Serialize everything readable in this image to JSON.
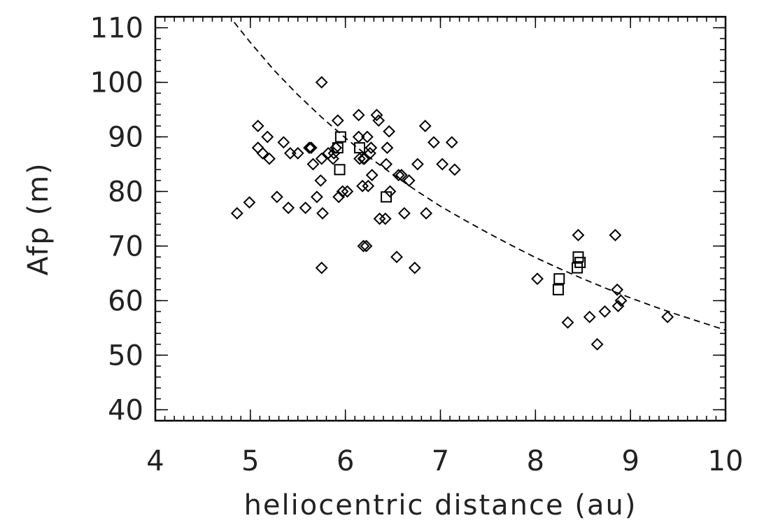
{
  "chart_data": {
    "type": "scatter",
    "title": "",
    "xlabel": "heliocentric distance (au)",
    "ylabel": "Afp (m)",
    "xlim": [
      4,
      10
    ],
    "ylim": [
      38,
      112
    ],
    "x_major_ticks": [
      4,
      5,
      6,
      7,
      8,
      9,
      10
    ],
    "x_tick_labels": [
      "4",
      "5",
      "6",
      "7",
      "8",
      "9",
      "10"
    ],
    "x_minor_step": 0.1,
    "y_major_ticks": [
      40,
      50,
      60,
      70,
      80,
      90,
      100,
      110
    ],
    "y_tick_labels": [
      "40",
      "50",
      "60",
      "70",
      "80",
      "90",
      "100",
      "110"
    ],
    "y_minor_step": 2,
    "grid": false,
    "legend": "none",
    "series": [
      {
        "marker": "diamond",
        "points": [
          [
            4.86,
            76
          ],
          [
            4.99,
            78
          ],
          [
            5.08,
            92
          ],
          [
            5.08,
            88
          ],
          [
            5.13,
            87
          ],
          [
            5.18,
            90
          ],
          [
            5.2,
            86
          ],
          [
            5.28,
            79
          ],
          [
            5.35,
            89
          ],
          [
            5.4,
            77
          ],
          [
            5.42,
            87
          ],
          [
            5.5,
            87
          ],
          [
            5.58,
            77
          ],
          [
            5.62,
            88
          ],
          [
            5.64,
            88
          ],
          [
            5.66,
            85
          ],
          [
            5.7,
            79
          ],
          [
            5.74,
            82
          ],
          [
            5.75,
            66
          ],
          [
            5.75,
            100
          ],
          [
            5.75,
            86
          ],
          [
            5.76,
            76
          ],
          [
            5.82,
            87
          ],
          [
            5.87,
            86
          ],
          [
            5.88,
            87
          ],
          [
            5.9,
            88
          ],
          [
            5.92,
            93
          ],
          [
            5.93,
            79
          ],
          [
            5.97,
            80
          ],
          [
            6.02,
            80
          ],
          [
            6.14,
            94
          ],
          [
            6.14,
            90
          ],
          [
            6.15,
            86
          ],
          [
            6.18,
            81
          ],
          [
            6.19,
            70
          ],
          [
            6.19,
            86
          ],
          [
            6.2,
            86
          ],
          [
            6.22,
            70
          ],
          [
            6.23,
            90
          ],
          [
            6.24,
            81
          ],
          [
            6.26,
            87
          ],
          [
            6.27,
            88
          ],
          [
            6.28,
            83
          ],
          [
            6.33,
            94
          ],
          [
            6.35,
            93
          ],
          [
            6.36,
            75
          ],
          [
            6.42,
            75
          ],
          [
            6.43,
            85
          ],
          [
            6.44,
            88
          ],
          [
            6.46,
            91
          ],
          [
            6.47,
            80
          ],
          [
            6.54,
            68
          ],
          [
            6.56,
            83
          ],
          [
            6.59,
            83
          ],
          [
            6.62,
            76
          ],
          [
            6.67,
            82
          ],
          [
            6.73,
            66
          ],
          [
            6.76,
            85
          ],
          [
            6.84,
            92
          ],
          [
            6.85,
            76
          ],
          [
            6.93,
            89
          ],
          [
            7.02,
            85
          ],
          [
            7.12,
            89
          ],
          [
            7.15,
            84
          ],
          [
            8.02,
            64
          ],
          [
            8.34,
            56
          ],
          [
            8.45,
            72
          ],
          [
            8.57,
            57
          ],
          [
            8.65,
            52
          ],
          [
            8.73,
            58
          ],
          [
            8.84,
            72
          ],
          [
            8.86,
            62
          ],
          [
            8.87,
            59
          ],
          [
            8.9,
            60
          ],
          [
            9.39,
            57
          ]
        ]
      },
      {
        "marker": "square",
        "points": [
          [
            5.92,
            88
          ],
          [
            5.94,
            84
          ],
          [
            5.95,
            90
          ],
          [
            6.15,
            88
          ],
          [
            6.43,
            79
          ],
          [
            8.24,
            62
          ],
          [
            8.25,
            64
          ],
          [
            8.44,
            66
          ],
          [
            8.45,
            68
          ],
          [
            8.47,
            67
          ]
        ]
      }
    ],
    "fit_line": {
      "style": "dashed",
      "points": [
        [
          4.83,
          111
        ],
        [
          5.0,
          107.3
        ],
        [
          5.25,
          102.2
        ],
        [
          5.5,
          97.7
        ],
        [
          5.75,
          93.6
        ],
        [
          6.0,
          89.8
        ],
        [
          6.25,
          86.3
        ],
        [
          6.5,
          83.1
        ],
        [
          6.75,
          80.1
        ],
        [
          7.0,
          77.3
        ],
        [
          7.25,
          74.8
        ],
        [
          7.5,
          72.4
        ],
        [
          7.75,
          70.1
        ],
        [
          8.0,
          67.9
        ],
        [
          8.25,
          65.9
        ],
        [
          8.5,
          64.0
        ],
        [
          8.75,
          62.2
        ],
        [
          9.0,
          60.5
        ],
        [
          9.25,
          58.9
        ],
        [
          9.5,
          57.4
        ],
        [
          9.75,
          56.0
        ],
        [
          10.0,
          54.6
        ]
      ]
    }
  }
}
